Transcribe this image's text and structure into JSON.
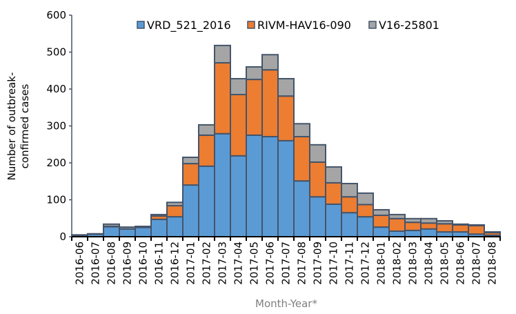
{
  "chart_data": {
    "type": "bar",
    "stacked": true,
    "xlabel": "Month-Year*",
    "ylabel": [
      "Number of outbreak-",
      "confirmed cases"
    ],
    "ylim": [
      0,
      600
    ],
    "yticks": [
      0,
      100,
      200,
      300,
      400,
      500,
      600
    ],
    "grid": false,
    "legend_position": "top",
    "categories": [
      "2016-06",
      "2016-07",
      "2016-08",
      "2016-09",
      "2016-10",
      "2016-11",
      "2016-12",
      "2017-01",
      "2017-02",
      "2017-03",
      "2017-04",
      "2017-05",
      "2017-06",
      "2017-07",
      "2017-08",
      "2017-09",
      "2017-10",
      "2017-11",
      "2017-12",
      "2018-01",
      "2018-02",
      "2018-03",
      "2018-04",
      "2018-05",
      "2018-06",
      "2018-07",
      "2018-08"
    ],
    "series": [
      {
        "name": "VRD_521_2016",
        "color": "#5b9bd5",
        "values": [
          4,
          7,
          27,
          21,
          25,
          47,
          54,
          140,
          191,
          279,
          219,
          275,
          271,
          260,
          151,
          108,
          88,
          65,
          54,
          26,
          15,
          17,
          21,
          13,
          13,
          7,
          4
        ]
      },
      {
        "name": "RIVM-HAV16-090",
        "color": "#ed7d31",
        "values": [
          0,
          0,
          1,
          0,
          0,
          9,
          30,
          58,
          84,
          192,
          166,
          151,
          181,
          121,
          120,
          94,
          58,
          43,
          33,
          32,
          34,
          22,
          16,
          22,
          19,
          23,
          7
        ]
      },
      {
        "name": "V16-25801",
        "color": "#a5a5a5",
        "values": [
          1,
          1,
          6,
          5,
          3,
          4,
          9,
          17,
          28,
          47,
          43,
          34,
          41,
          47,
          35,
          47,
          43,
          36,
          31,
          15,
          11,
          10,
          12,
          8,
          2,
          2,
          2
        ]
      }
    ],
    "bar_outline_color": "#44546a"
  }
}
